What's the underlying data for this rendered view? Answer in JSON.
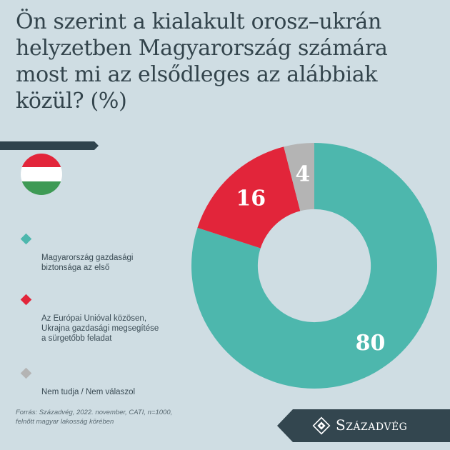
{
  "chart_data": {
    "type": "pie",
    "title": "Ön szerint a kialakult orosz–ukrán helyzetben Magyarország számára most mi az elsődleges az alábbiak közül? (%)",
    "categories": [
      "Magyarország gazdasági biztonsága az első",
      "Az Európai Unióval közösen, Ukrajna gazdasági megsegítése a sürgetőbb feladat",
      "Nem tudja / Nem válaszol"
    ],
    "values": [
      80,
      16,
      4
    ],
    "value_labels": [
      "80",
      "16",
      "4"
    ],
    "colors": [
      "#4db7ad",
      "#e2253a",
      "#b4b4b4"
    ],
    "legend_position": "left",
    "inner_radius_fraction": 0.46
  },
  "legend": [
    {
      "label": "Magyarország gazdasági\nbiztonsága az első",
      "color": "#4db7ad"
    },
    {
      "label": "Az Európai Unióval közösen,\nUkrajna gazdasági megsegítése\na sürgetőbb feladat",
      "color": "#e2253a"
    },
    {
      "label": "Nem tudja / Nem válaszol",
      "color": "#b4b4b4"
    }
  ],
  "flag": {
    "colors": [
      "#e2253a",
      "#ffffff",
      "#3e9a55"
    ]
  },
  "source": "Forrás: Századvég, 2022. november, CATI, n=1000,\nfelnőtt magyar lakosság körében",
  "brand": {
    "name": "Századvég",
    "logo_icon": "szazadveg-logo-icon"
  }
}
